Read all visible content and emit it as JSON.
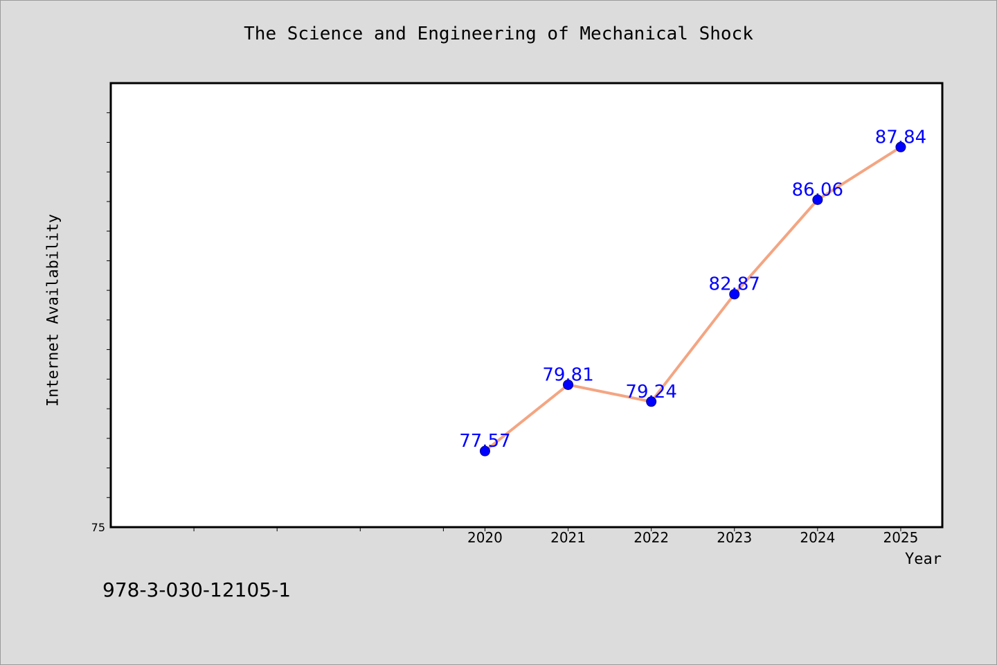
{
  "chart_data": {
    "type": "line",
    "title": "The Science and Engineering of Mechanical Shock",
    "xlabel": "Year",
    "ylabel": "Internet Availability",
    "x": [
      2020,
      2021,
      2022,
      2023,
      2024,
      2025
    ],
    "x_tick_labels": [
      "2020",
      "2021",
      "2022",
      "2023",
      "2024",
      "2025"
    ],
    "xlim": [
      2015.5,
      2025.5
    ],
    "ylim": [
      75,
      90
    ],
    "y_tick_labels": [
      "75"
    ],
    "series": [
      {
        "values": [
          77.57,
          79.81,
          79.24,
          82.87,
          86.06,
          87.84
        ],
        "data_labels": [
          "77.57",
          "79.81",
          "79.24",
          "82.87",
          "86.06",
          "87.84"
        ],
        "line_color": "#f4a582",
        "marker_color": "#0000ff",
        "label_color": "#0000ff"
      }
    ],
    "grid": false,
    "legend": "none"
  },
  "footer": {
    "isbn": "978-3-030-12105-1"
  },
  "colors": {
    "background": "#dcdcdc",
    "plot_background": "#ffffff",
    "axis": "#000000"
  }
}
